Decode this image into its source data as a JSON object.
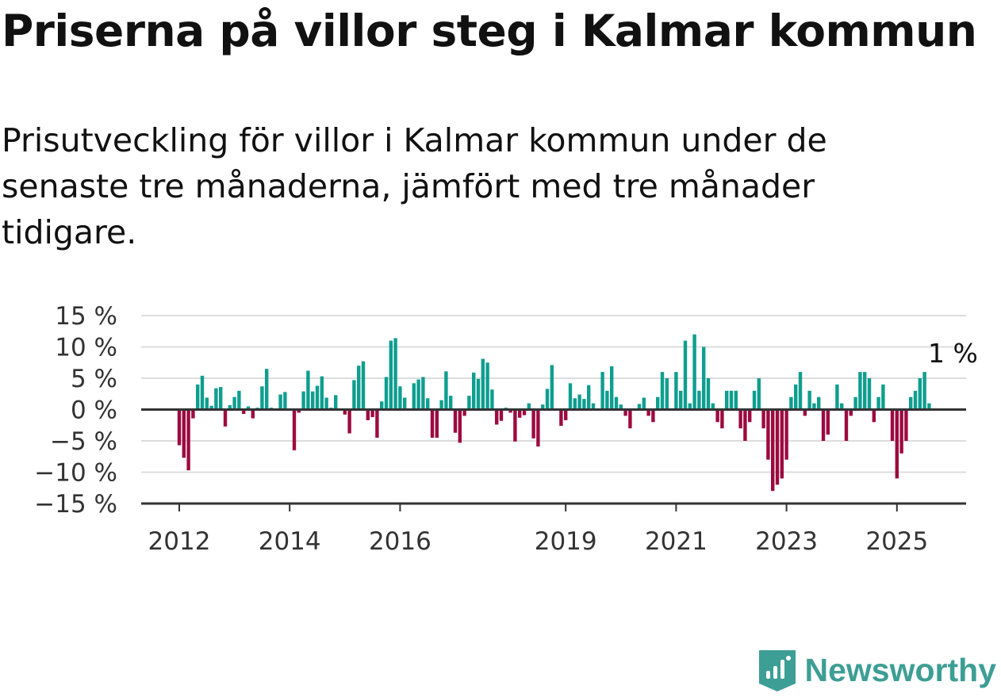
{
  "header": {
    "title": "Priserna på villor steg i Kalmar kommun",
    "subtitle": "Prisutveckling för villor i Kalmar kommun under de senaste tre månaderna, jämfört med tre månader tidigare."
  },
  "brand": {
    "name": "Newsworthy",
    "color": "#3d9e95"
  },
  "colors": {
    "positive": "#0e9e8f",
    "negative": "#9c0a3f",
    "grid": "#dcdcdc",
    "axis": "#333333"
  },
  "chart_data": {
    "type": "bar",
    "x_start": "2012-01",
    "frequency": "monthly",
    "ylim": [
      -15,
      15
    ],
    "yticks": [
      {
        "value": 15,
        "label": "15 %"
      },
      {
        "value": 10,
        "label": "10 %"
      },
      {
        "value": 5,
        "label": "5 %"
      },
      {
        "value": 0,
        "label": "0 %"
      },
      {
        "value": -5,
        "label": "−5 %"
      },
      {
        "value": -10,
        "label": "−10 %"
      },
      {
        "value": -15,
        "label": "−15 %"
      }
    ],
    "xticks": [
      "2012",
      "2014",
      "2016",
      "2019",
      "2021",
      "2023",
      "2025"
    ],
    "annotation": "1 %",
    "values": [
      -5.7,
      -7.7,
      -9.7,
      -1.4,
      4.0,
      5.4,
      1.9,
      0.6,
      3.4,
      3.6,
      -2.7,
      0.7,
      2.0,
      3.0,
      -0.7,
      0.5,
      -1.4,
      0.3,
      3.7,
      6.5,
      0.3,
      0.0,
      2.4,
      2.8,
      0.0,
      -6.5,
      -0.5,
      2.9,
      6.2,
      2.9,
      3.8,
      5.3,
      1.9,
      0.3,
      2.3,
      0.0,
      -0.8,
      -3.8,
      4.7,
      7.0,
      7.7,
      -1.7,
      -1.2,
      -4.5,
      1.3,
      5.2,
      11.0,
      11.4,
      3.7,
      1.9,
      0.0,
      4.2,
      4.8,
      5.2,
      1.8,
      -4.5,
      -4.5,
      1.5,
      6.1,
      2.2,
      -3.7,
      -5.3,
      -1.0,
      2.2,
      5.9,
      4.9,
      8.1,
      7.5,
      3.2,
      -2.4,
      -1.8,
      0.3,
      -0.5,
      -5.1,
      -1.3,
      -0.9,
      1.0,
      -4.6,
      -5.9,
      0.8,
      3.3,
      7.1,
      0.0,
      -2.6,
      -1.7,
      4.2,
      1.8,
      2.4,
      1.7,
      3.9,
      1.0,
      0.0,
      6.0,
      3.0,
      6.9,
      2.0,
      0.8,
      -1.0,
      -3.0,
      0.0,
      0.9,
      1.9,
      -1.0,
      -2.0,
      2.0,
      6.0,
      5.0,
      0.0,
      6.0,
      3.0,
      11.0,
      1.0,
      12.0,
      3.0,
      10.0,
      5.0,
      1.0,
      -2.0,
      -3.0,
      3.0,
      3.0,
      3.0,
      -3.0,
      -5.0,
      -2.0,
      3.0,
      5.0,
      -3.0,
      -8.0,
      -13.0,
      -12.0,
      -11.0,
      -8.0,
      2.0,
      4.0,
      6.0,
      -1.0,
      3.0,
      1.0,
      2.0,
      -5.0,
      -4.0,
      0.0,
      4.0,
      1.0,
      -5.0,
      -1.0,
      2.0,
      6.0,
      6.0,
      5.0,
      -2.0,
      2.0,
      4.0,
      0.0,
      -5.0,
      -11.0,
      -7.0,
      -5.0,
      2.0,
      3.0,
      5.0,
      6.0,
      1.0
    ]
  }
}
